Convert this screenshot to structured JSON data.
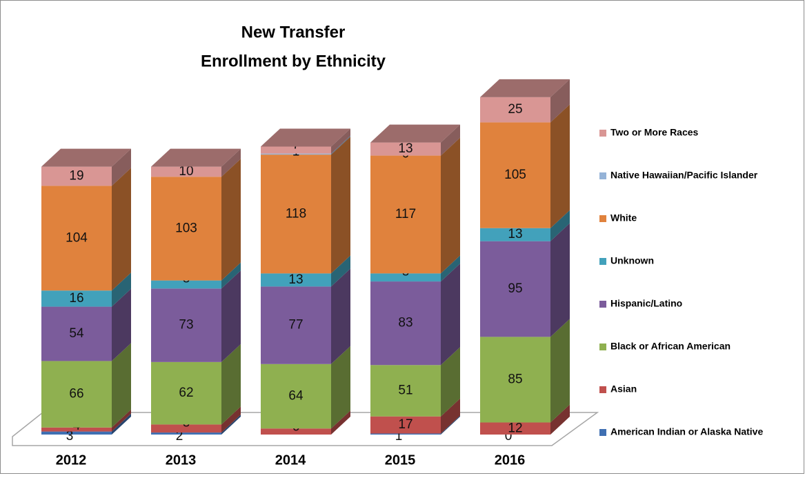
{
  "chart_data": {
    "type": "bar3d_stacked",
    "title": [
      "New Transfer",
      "Enrollment by Ethnicity"
    ],
    "categories": [
      "2012",
      "2013",
      "2014",
      "2015",
      "2016"
    ],
    "series": [
      {
        "name": "American Indian or Alaska Native",
        "color": "#3f6fb2",
        "values": [
          3,
          2,
          null,
          1,
          0
        ]
      },
      {
        "name": "Asian",
        "color": "#c0504d",
        "values": [
          4,
          8,
          6,
          17,
          12
        ]
      },
      {
        "name": "Black or African American",
        "color": "#8fb050",
        "values": [
          66,
          62,
          64,
          51,
          85
        ]
      },
      {
        "name": "Hispanic/Latino",
        "color": "#7b5c9b",
        "values": [
          54,
          73,
          77,
          83,
          95
        ]
      },
      {
        "name": "Unknown",
        "color": "#42a1bb",
        "values": [
          16,
          8,
          13,
          8,
          13
        ]
      },
      {
        "name": "White",
        "color": "#e0823d",
        "values": [
          104,
          103,
          118,
          117,
          105
        ]
      },
      {
        "name": "Native Hawaiian/Pacific Islander",
        "color": "#95b3d7",
        "values": [
          null,
          null,
          1,
          0,
          null
        ]
      },
      {
        "name": "Two or More Races",
        "color": "#d99694",
        "values": [
          19,
          10,
          7,
          13,
          25
        ]
      }
    ]
  }
}
